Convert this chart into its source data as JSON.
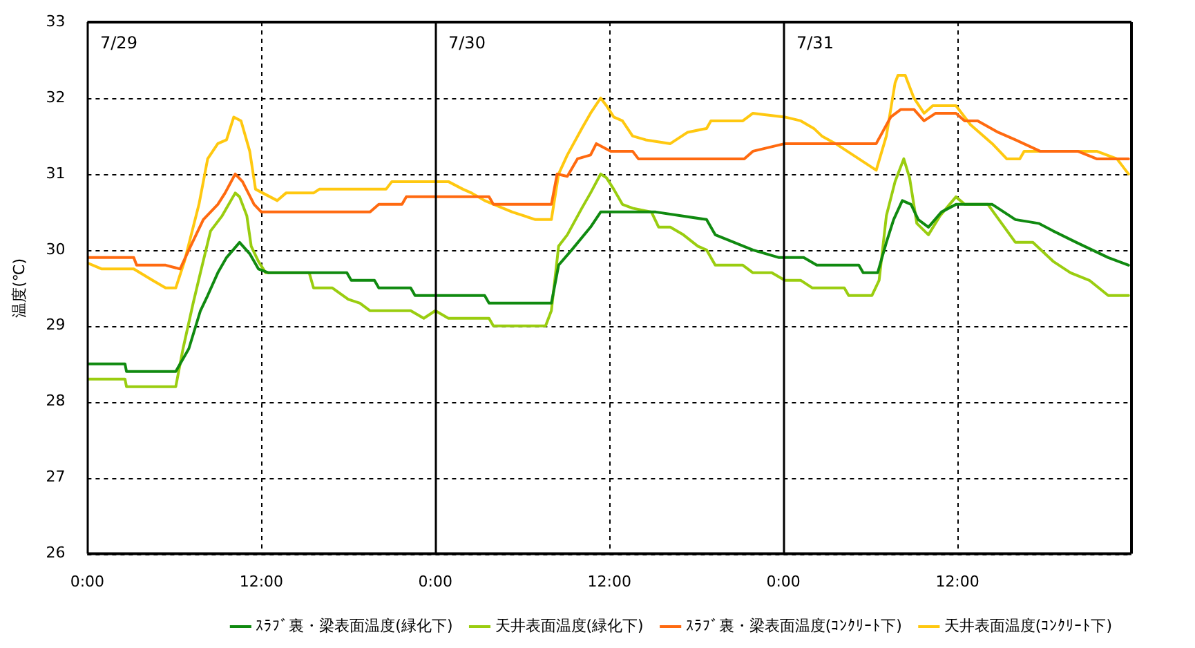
{
  "chart_data": {
    "type": "line",
    "ylabel": "温度(℃)",
    "xlim": [
      "--07-29T00:00",
      "--08-01T00:00"
    ],
    "xticks": [
      {
        "value": "--07-29T00:00",
        "label": "0:00"
      },
      {
        "value": "--07-29T12:00",
        "label": "12:00"
      },
      {
        "value": "--07-30T00:00",
        "label": "0:00"
      },
      {
        "value": "--07-30T12:00",
        "label": "12:00"
      },
      {
        "value": "--07-31T00:00",
        "label": "0:00"
      },
      {
        "value": "--07-31T12:00",
        "label": "12:00"
      }
    ],
    "ylim": [
      26,
      33
    ],
    "yticks": [
      26,
      27,
      28,
      29,
      30,
      31,
      32,
      33
    ],
    "grid": true,
    "legend": "bottom",
    "marker": "none",
    "line_style": "solid",
    "ref_lines": [
      {
        "axis": "x",
        "value": "--07-29T00:00",
        "label": "7/29"
      },
      {
        "axis": "x",
        "value": "--07-30T00:00",
        "label": "7/30"
      },
      {
        "axis": "x",
        "value": "--07-31T00:00",
        "label": "7/31"
      }
    ],
    "series": [
      {
        "name": "ｽﾗﾌﾞ裏・梁表面温度(緑化下)",
        "color": "#108a10",
        "x": [
          "--07-29T00:00",
          "--07-29T02:36",
          "--07-29T02:42",
          "--07-29T06:06",
          "--07-29T07:00",
          "--07-29T07:48",
          "--07-29T08:18",
          "--07-29T09:00",
          "--07-29T09:36",
          "--07-29T10:30",
          "--07-29T11:12",
          "--07-29T11:48",
          "--07-29T12:30",
          "--07-29T17:54",
          "--07-29T18:12",
          "--07-29T19:48",
          "--07-29T20:06",
          "--07-29T22:18",
          "--07-29T22:36",
          "--07-30T03:24",
          "--07-30T03:42",
          "--07-30T08:00",
          "--07-30T08:30",
          "--07-30T09:24",
          "--07-30T10:42",
          "--07-30T11:24",
          "--07-30T15:12",
          "--07-30T18:42",
          "--07-30T19:18",
          "--07-30T21:54",
          "--07-30T23:42",
          "--07-31T01:24",
          "--07-31T02:18",
          "--07-31T05:12",
          "--07-31T05:30",
          "--07-31T06:30",
          "--07-31T07:06",
          "--07-31T07:36",
          "--07-31T08:12",
          "--07-31T08:48",
          "--07-31T09:18",
          "--07-31T10:00",
          "--07-31T10:54",
          "--07-31T11:54",
          "--07-31T14:24",
          "--07-31T16:00",
          "--07-31T17:36",
          "--07-31T18:36",
          "--07-31T20:12",
          "--07-31T22:24",
          "--07-31T23:48"
        ],
        "values": [
          28.5,
          28.5,
          28.4,
          28.4,
          28.7,
          29.2,
          29.4,
          29.7,
          29.9,
          30.1,
          29.95,
          29.75,
          29.7,
          29.7,
          29.6,
          29.6,
          29.5,
          29.5,
          29.4,
          29.4,
          29.3,
          29.3,
          29.8,
          30.0,
          30.3,
          30.5,
          30.5,
          30.4,
          30.2,
          30.0,
          29.9,
          29.9,
          29.8,
          29.8,
          29.7,
          29.7,
          30.1,
          30.4,
          30.65,
          30.6,
          30.4,
          30.3,
          30.5,
          30.6,
          30.6,
          30.4,
          30.35,
          30.25,
          30.1,
          29.9,
          29.8
        ]
      },
      {
        "name": "天井表面温度(緑化下)",
        "color": "#9acd10",
        "x": [
          "--07-29T00:00",
          "--07-29T02:36",
          "--07-29T02:42",
          "--07-29T06:06",
          "--07-29T06:36",
          "--07-29T07:18",
          "--07-29T07:48",
          "--07-29T08:30",
          "--07-29T09:18",
          "--07-29T10:12",
          "--07-29T10:30",
          "--07-29T11:00",
          "--07-29T11:18",
          "--07-29T11:48",
          "--07-29T12:18",
          "--07-29T15:18",
          "--07-29T15:36",
          "--07-29T16:54",
          "--07-29T18:00",
          "--07-29T18:48",
          "--07-29T19:30",
          "--07-29T22:18",
          "--07-29T23:12",
          "--07-30T00:00",
          "--07-30T00:54",
          "--07-30T03:42",
          "--07-30T04:00",
          "--07-30T07:36",
          "--07-30T08:00",
          "--07-30T08:30",
          "--07-30T09:06",
          "--07-30T10:06",
          "--07-30T10:42",
          "--07-30T11:24",
          "--07-30T11:48",
          "--07-30T12:18",
          "--07-30T12:54",
          "--07-30T13:36",
          "--07-30T14:54",
          "--07-30T15:24",
          "--07-30T16:12",
          "--07-30T17:06",
          "--07-30T18:06",
          "--07-30T18:42",
          "--07-30T19:18",
          "--07-30T21:12",
          "--07-30T21:54",
          "--07-30T23:12",
          "--07-31T00:06",
          "--07-31T01:12",
          "--07-31T02:00",
          "--07-31T04:12",
          "--07-31T04:30",
          "--07-31T06:06",
          "--07-31T06:36",
          "--07-31T07:06",
          "--07-31T07:42",
          "--07-31T08:18",
          "--07-31T08:42",
          "--07-31T09:12",
          "--07-31T10:00",
          "--07-31T10:48",
          "--07-31T11:54",
          "--07-31T12:30",
          "--07-31T14:06",
          "--07-31T16:00",
          "--07-31T17:12",
          "--07-31T18:36",
          "--07-31T19:48",
          "--07-31T21:06",
          "--07-31T22:24",
          "--07-31T23:48"
        ],
        "values": [
          28.3,
          28.3,
          28.2,
          28.2,
          28.7,
          29.3,
          29.7,
          30.25,
          30.45,
          30.75,
          30.7,
          30.45,
          30.05,
          29.85,
          29.7,
          29.7,
          29.5,
          29.5,
          29.35,
          29.3,
          29.2,
          29.2,
          29.1,
          29.2,
          29.1,
          29.1,
          29.0,
          29.0,
          29.2,
          30.05,
          30.2,
          30.55,
          30.75,
          31.0,
          30.95,
          30.8,
          30.6,
          30.55,
          30.5,
          30.3,
          30.3,
          30.2,
          30.05,
          30.0,
          29.8,
          29.8,
          29.7,
          29.7,
          29.6,
          29.6,
          29.5,
          29.5,
          29.4,
          29.4,
          29.6,
          30.45,
          30.9,
          31.2,
          30.95,
          30.35,
          30.2,
          30.45,
          30.7,
          30.6,
          30.6,
          30.1,
          30.1,
          29.85,
          29.7,
          29.6,
          29.4,
          29.4
        ]
      },
      {
        "name": "ｽﾗﾌﾞ裏・梁表面温度(ｺﾝｸﾘｰﾄ下)",
        "color": "#ff6a10",
        "x": [
          "--07-29T00:00",
          "--07-29T03:12",
          "--07-29T03:24",
          "--07-29T05:24",
          "--07-29T06:24",
          "--07-29T07:00",
          "--07-29T08:00",
          "--07-29T09:00",
          "--07-29T09:30",
          "--07-29T10:12",
          "--07-29T10:42",
          "--07-29T11:30",
          "--07-29T12:00",
          "--07-29T19:30",
          "--07-29T20:06",
          "--07-29T21:42",
          "--07-29T22:00",
          "--07-30T03:42",
          "--07-30T04:00",
          "--07-30T08:00",
          "--07-30T08:24",
          "--07-30T09:06",
          "--07-30T09:48",
          "--07-30T10:42",
          "--07-30T11:06",
          "--07-30T12:06",
          "--07-30T13:36",
          "--07-30T14:00",
          "--07-30T21:18",
          "--07-30T21:54",
          "--07-31T00:06",
          "--07-31T04:12",
          "--07-31T06:24",
          "--07-31T07:24",
          "--07-31T08:06",
          "--07-31T09:00",
          "--07-31T09:42",
          "--07-31T10:30",
          "--07-31T11:54",
          "--07-31T12:30",
          "--07-31T13:24",
          "--07-31T14:48",
          "--07-31T16:00",
          "--07-31T17:42",
          "--07-31T20:18",
          "--07-31T21:36",
          "--07-31T23:48"
        ],
        "values": [
          29.9,
          29.9,
          29.8,
          29.8,
          29.75,
          30.0,
          30.4,
          30.6,
          30.75,
          31.0,
          30.9,
          30.6,
          30.5,
          30.5,
          30.6,
          30.6,
          30.7,
          30.7,
          30.6,
          30.6,
          31.0,
          30.97,
          31.2,
          31.25,
          31.4,
          31.3,
          31.3,
          31.2,
          31.2,
          31.3,
          31.4,
          31.4,
          31.4,
          31.75,
          31.85,
          31.85,
          31.7,
          31.8,
          31.8,
          31.7,
          31.7,
          31.55,
          31.45,
          31.3,
          31.3,
          31.2,
          31.2
        ]
      },
      {
        "name": "天井表面温度(ｺﾝｸﾘｰﾄ下)",
        "color": "#ffc810",
        "x": [
          "--07-29T00:00",
          "--07-29T01:00",
          "--07-29T03:12",
          "--07-29T04:30",
          "--07-29T05:24",
          "--07-29T06:06",
          "--07-29T06:42",
          "--07-29T07:42",
          "--07-29T08:18",
          "--07-29T09:00",
          "--07-29T09:36",
          "--07-29T10:06",
          "--07-29T10:36",
          "--07-29T11:12",
          "--07-29T11:36",
          "--07-29T12:06",
          "--07-29T13:06",
          "--07-29T13:42",
          "--07-29T15:36",
          "--07-29T16:00",
          "--07-29T20:36",
          "--07-29T21:00",
          "--07-30T00:00",
          "--07-30T00:54",
          "--07-30T01:54",
          "--07-30T02:30",
          "--07-30T03:24",
          "--07-30T05:18",
          "--07-30T06:54",
          "--07-30T08:00",
          "--07-30T08:30",
          "--07-30T09:06",
          "--07-30T10:06",
          "--07-30T10:42",
          "--07-30T11:24",
          "--07-30T11:48",
          "--07-30T12:18",
          "--07-30T12:54",
          "--07-30T13:36",
          "--07-30T14:30",
          "--07-30T16:12",
          "--07-30T17:24",
          "--07-30T18:42",
          "--07-30T19:00",
          "--07-30T21:12",
          "--07-30T21:54",
          "--07-31T00:06",
          "--07-31T01:12",
          "--07-31T02:06",
          "--07-31T02:39",
          "--07-31T03:36",
          "--07-31T05:12",
          "--07-31T06:24",
          "--07-31T07:06",
          "--07-31T07:42",
          "--07-31T07:54",
          "--07-31T08:24",
          "--07-31T09:00",
          "--07-31T09:42",
          "--07-31T10:18",
          "--07-31T11:54",
          "--07-31T12:54",
          "--07-31T13:48",
          "--07-31T14:24",
          "--07-31T15:24",
          "--07-31T16:18",
          "--07-31T16:36",
          "--07-31T21:36",
          "--07-31T23:00",
          "--07-31T23:48"
        ],
        "values": [
          29.83,
          29.75,
          29.75,
          29.6,
          29.5,
          29.5,
          29.85,
          30.6,
          31.2,
          31.4,
          31.45,
          31.75,
          31.7,
          31.3,
          30.8,
          30.75,
          30.65,
          30.75,
          30.75,
          30.8,
          30.8,
          30.9,
          30.9,
          30.9,
          30.8,
          30.75,
          30.65,
          30.5,
          30.4,
          30.4,
          31.0,
          31.25,
          31.6,
          31.8,
          32.0,
          31.9,
          31.75,
          31.7,
          31.5,
          31.45,
          31.4,
          31.55,
          31.6,
          31.7,
          31.7,
          31.8,
          31.75,
          31.7,
          31.6,
          31.5,
          31.4,
          31.2,
          31.05,
          31.5,
          32.2,
          32.3,
          32.3,
          32.0,
          31.8,
          31.9,
          31.9,
          31.65,
          31.5,
          31.4,
          31.2,
          31.2,
          31.3,
          31.3,
          31.2,
          31.0
        ]
      }
    ]
  }
}
